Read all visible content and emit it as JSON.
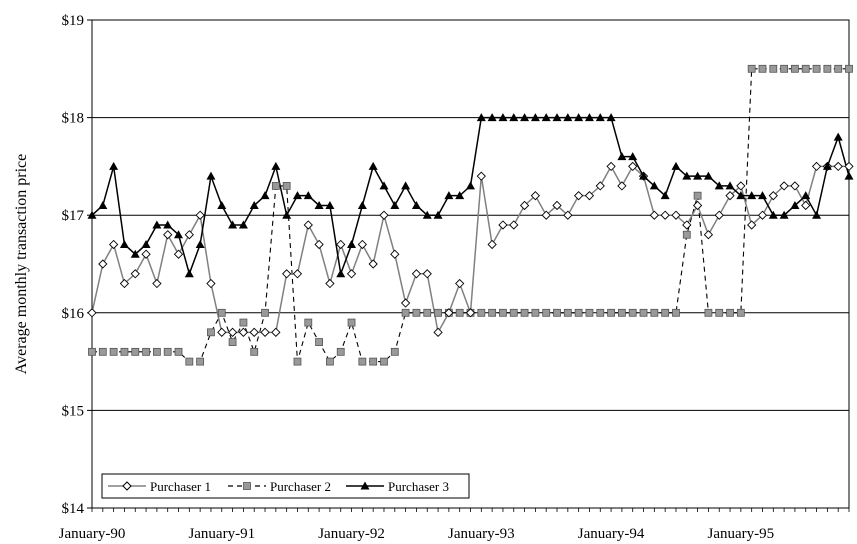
{
  "chart_data": {
    "type": "line",
    "title": "",
    "xlabel": "",
    "ylabel": "Average monthly transaction price",
    "ylim": [
      14,
      19
    ],
    "y_ticks": [
      14,
      15,
      16,
      17,
      18,
      19
    ],
    "y_tick_labels": [
      "$14",
      "$15",
      "$16",
      "$17",
      "$18",
      "$19"
    ],
    "x_start": "January-90",
    "x_tick_labels": [
      "January-90",
      "January-91",
      "January-92",
      "January-93",
      "January-94",
      "January-95"
    ],
    "x_tick_months": [
      0,
      12,
      24,
      36,
      48,
      60
    ],
    "grid": "horizontal",
    "legend_position": "bottom-left",
    "colors": {
      "purchaser1": "#808080",
      "purchaser2": "#000000",
      "purchaser3": "#000000",
      "purchaser2_marker": "#999999"
    },
    "series": [
      {
        "name": "Purchaser 1",
        "marker": "diamond-open",
        "line": "solid-gray",
        "points": [
          [
            0,
            16.0
          ],
          [
            1,
            16.5
          ],
          [
            2,
            16.7
          ],
          [
            3,
            16.3
          ],
          [
            4,
            16.4
          ],
          [
            5,
            16.6
          ],
          [
            6,
            16.3
          ],
          [
            7,
            16.8
          ],
          [
            8,
            16.6
          ],
          [
            9,
            16.8
          ],
          [
            10,
            17.0
          ],
          [
            11,
            16.3
          ],
          [
            12,
            15.8
          ],
          [
            13,
            15.8
          ],
          [
            14,
            15.8
          ],
          [
            15,
            15.8
          ],
          [
            16,
            15.8
          ],
          [
            17,
            15.8
          ],
          [
            18,
            16.4
          ],
          [
            19,
            16.4
          ],
          [
            20,
            16.9
          ],
          [
            21,
            16.7
          ],
          [
            22,
            16.3
          ],
          [
            23,
            16.7
          ],
          [
            24,
            16.4
          ],
          [
            25,
            16.7
          ],
          [
            26,
            16.5
          ],
          [
            27,
            17.0
          ],
          [
            28,
            16.6
          ],
          [
            29,
            16.1
          ],
          [
            30,
            16.4
          ],
          [
            31,
            16.4
          ],
          [
            32,
            15.8
          ],
          [
            33,
            16.0
          ],
          [
            34,
            16.3
          ],
          [
            35,
            16.0
          ],
          [
            36,
            17.4
          ],
          [
            37,
            16.7
          ],
          [
            38,
            16.9
          ],
          [
            39,
            16.9
          ],
          [
            40,
            17.1
          ],
          [
            41,
            17.2
          ],
          [
            42,
            17.0
          ],
          [
            43,
            17.1
          ],
          [
            44,
            17.0
          ],
          [
            45,
            17.2
          ],
          [
            46,
            17.2
          ],
          [
            47,
            17.3
          ],
          [
            48,
            17.5
          ],
          [
            49,
            17.3
          ],
          [
            50,
            17.5
          ],
          [
            51,
            17.4
          ],
          [
            52,
            17.0
          ],
          [
            53,
            17.0
          ],
          [
            54,
            17.0
          ],
          [
            55,
            16.9
          ],
          [
            56,
            17.1
          ],
          [
            57,
            16.8
          ],
          [
            58,
            17.0
          ],
          [
            59,
            17.2
          ],
          [
            60,
            17.3
          ],
          [
            61,
            16.9
          ],
          [
            62,
            17.0
          ],
          [
            63,
            17.2
          ],
          [
            64,
            17.3
          ],
          [
            65,
            17.3
          ],
          [
            66,
            17.1
          ],
          [
            67,
            17.5
          ],
          [
            68,
            17.5
          ],
          [
            69,
            17.5
          ],
          [
            70,
            17.5
          ]
        ]
      },
      {
        "name": "Purchaser 2",
        "marker": "square-filled",
        "line": "dashed",
        "points": [
          [
            0,
            15.6
          ],
          [
            1,
            15.6
          ],
          [
            2,
            15.6
          ],
          [
            3,
            15.6
          ],
          [
            4,
            15.6
          ],
          [
            5,
            15.6
          ],
          [
            6,
            15.6
          ],
          [
            7,
            15.6
          ],
          [
            8,
            15.6
          ],
          [
            9,
            15.5
          ],
          [
            10,
            15.5
          ],
          [
            11,
            15.8
          ],
          [
            12,
            16.0
          ],
          [
            13,
            15.7
          ],
          [
            14,
            15.9
          ],
          [
            15,
            15.6
          ],
          [
            16,
            16.0
          ],
          [
            17,
            17.3
          ],
          [
            18,
            17.3
          ],
          [
            19,
            15.5
          ],
          [
            20,
            15.9
          ],
          [
            21,
            15.7
          ],
          [
            22,
            15.5
          ],
          [
            23,
            15.6
          ],
          [
            24,
            15.9
          ],
          [
            25,
            15.5
          ],
          [
            26,
            15.5
          ],
          [
            27,
            15.5
          ],
          [
            28,
            15.6
          ],
          [
            29,
            16.0
          ],
          [
            30,
            16.0
          ],
          [
            31,
            16.0
          ],
          [
            32,
            16.0
          ],
          [
            33,
            16.0
          ],
          [
            34,
            16.0
          ],
          [
            35,
            16.0
          ],
          [
            36,
            16.0
          ],
          [
            37,
            16.0
          ],
          [
            38,
            16.0
          ],
          [
            39,
            16.0
          ],
          [
            40,
            16.0
          ],
          [
            41,
            16.0
          ],
          [
            42,
            16.0
          ],
          [
            43,
            16.0
          ],
          [
            44,
            16.0
          ],
          [
            45,
            16.0
          ],
          [
            46,
            16.0
          ],
          [
            47,
            16.0
          ],
          [
            48,
            16.0
          ],
          [
            49,
            16.0
          ],
          [
            50,
            16.0
          ],
          [
            51,
            16.0
          ],
          [
            52,
            16.0
          ],
          [
            53,
            16.0
          ],
          [
            54,
            16.0
          ],
          [
            55,
            16.8
          ],
          [
            56,
            17.2
          ],
          [
            57,
            16.0
          ],
          [
            58,
            16.0
          ],
          [
            59,
            16.0
          ],
          [
            60,
            16.0
          ],
          [
            61,
            18.5
          ],
          [
            62,
            18.5
          ],
          [
            63,
            18.5
          ],
          [
            64,
            18.5
          ],
          [
            65,
            18.5
          ],
          [
            66,
            18.5
          ],
          [
            67,
            18.5
          ],
          [
            68,
            18.5
          ],
          [
            69,
            18.5
          ],
          [
            70,
            18.5
          ]
        ]
      },
      {
        "name": "Purchaser 3",
        "marker": "triangle-filled",
        "line": "solid-black",
        "points": [
          [
            0,
            17.0
          ],
          [
            1,
            17.1
          ],
          [
            2,
            17.5
          ],
          [
            3,
            16.7
          ],
          [
            4,
            16.6
          ],
          [
            5,
            16.7
          ],
          [
            6,
            16.9
          ],
          [
            7,
            16.9
          ],
          [
            8,
            16.8
          ],
          [
            9,
            16.4
          ],
          [
            10,
            16.7
          ],
          [
            11,
            17.4
          ],
          [
            12,
            17.1
          ],
          [
            13,
            16.9
          ],
          [
            14,
            16.9
          ],
          [
            15,
            17.1
          ],
          [
            16,
            17.2
          ],
          [
            17,
            17.5
          ],
          [
            18,
            17.0
          ],
          [
            19,
            17.2
          ],
          [
            20,
            17.2
          ],
          [
            21,
            17.1
          ],
          [
            22,
            17.1
          ],
          [
            23,
            16.4
          ],
          [
            24,
            16.7
          ],
          [
            25,
            17.1
          ],
          [
            26,
            17.5
          ],
          [
            27,
            17.3
          ],
          [
            28,
            17.1
          ],
          [
            29,
            17.3
          ],
          [
            30,
            17.1
          ],
          [
            31,
            17.0
          ],
          [
            32,
            17.0
          ],
          [
            33,
            17.2
          ],
          [
            34,
            17.2
          ],
          [
            35,
            17.3
          ],
          [
            36,
            18.0
          ],
          [
            37,
            18.0
          ],
          [
            38,
            18.0
          ],
          [
            39,
            18.0
          ],
          [
            40,
            18.0
          ],
          [
            41,
            18.0
          ],
          [
            42,
            18.0
          ],
          [
            43,
            18.0
          ],
          [
            44,
            18.0
          ],
          [
            45,
            18.0
          ],
          [
            46,
            18.0
          ],
          [
            47,
            18.0
          ],
          [
            48,
            18.0
          ],
          [
            49,
            17.6
          ],
          [
            50,
            17.6
          ],
          [
            51,
            17.4
          ],
          [
            52,
            17.3
          ],
          [
            53,
            17.2
          ],
          [
            54,
            17.5
          ],
          [
            55,
            17.4
          ],
          [
            56,
            17.4
          ],
          [
            57,
            17.4
          ],
          [
            58,
            17.3
          ],
          [
            59,
            17.3
          ],
          [
            60,
            17.2
          ],
          [
            61,
            17.2
          ],
          [
            62,
            17.2
          ],
          [
            63,
            17.0
          ],
          [
            64,
            17.0
          ],
          [
            65,
            17.1
          ],
          [
            66,
            17.2
          ],
          [
            67,
            17.0
          ],
          [
            68,
            17.5
          ],
          [
            69,
            17.8
          ],
          [
            70,
            17.4
          ]
        ]
      }
    ]
  }
}
